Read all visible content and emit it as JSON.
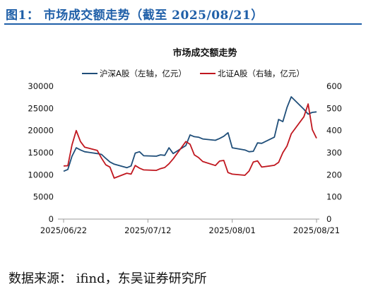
{
  "figure": {
    "title": "图1：  市场成交额走势（截至 2025/08/21）",
    "source": "数据来源：  ifind，东吴证券研究所"
  },
  "chart_data": {
    "type": "line",
    "title": "市场成交额走势",
    "legend_position": "top",
    "grid": false,
    "x_ticks": [
      "2025/06/22",
      "2025/07/12",
      "2025/08/01",
      "2025/08/21"
    ],
    "x_range": [
      "2025-06-22",
      "2025-08-21"
    ],
    "y_left": {
      "ticks": [
        "0",
        "5000",
        "10000",
        "15000",
        "20000",
        "25000",
        "30000"
      ],
      "range": [
        0,
        30000
      ]
    },
    "y_right": {
      "ticks": [
        "0",
        "100",
        "200",
        "300",
        "400",
        "500",
        "600"
      ],
      "range": [
        0,
        600
      ]
    },
    "series": [
      {
        "name": "沪深A股（左轴，亿元）",
        "axis": "left",
        "color": "#1f4e79",
        "x": [
          "2025-06-22",
          "2025-06-23",
          "2025-06-24",
          "2025-06-25",
          "2025-06-26",
          "2025-06-27",
          "2025-06-30",
          "2025-07-01",
          "2025-07-02",
          "2025-07-03",
          "2025-07-04",
          "2025-07-07",
          "2025-07-08",
          "2025-07-09",
          "2025-07-10",
          "2025-07-11",
          "2025-07-14",
          "2025-07-15",
          "2025-07-16",
          "2025-07-17",
          "2025-07-18",
          "2025-07-21",
          "2025-07-22",
          "2025-07-23",
          "2025-07-24",
          "2025-07-25",
          "2025-07-28",
          "2025-07-29",
          "2025-07-30",
          "2025-07-31",
          "2025-08-01",
          "2025-08-04",
          "2025-08-05",
          "2025-08-06",
          "2025-08-07",
          "2025-08-08",
          "2025-08-11",
          "2025-08-12",
          "2025-08-13",
          "2025-08-14",
          "2025-08-15",
          "2025-08-18",
          "2025-08-19",
          "2025-08-20",
          "2025-08-21"
        ],
        "values": [
          10800,
          11200,
          14200,
          16100,
          15600,
          15200,
          14800,
          14600,
          13700,
          12900,
          12400,
          11600,
          12000,
          14900,
          15200,
          14300,
          14200,
          14500,
          14400,
          16100,
          14800,
          16600,
          19000,
          18600,
          18500,
          18100,
          17800,
          18200,
          18700,
          19500,
          16100,
          15600,
          15200,
          15300,
          17200,
          17100,
          18500,
          22500,
          22000,
          25200,
          27600,
          24800,
          23700,
          24100,
          24200
        ]
      },
      {
        "name": "北证A股（右轴，亿元）",
        "axis": "right",
        "color": "#c0171f",
        "x": [
          "2025-06-22",
          "2025-06-23",
          "2025-06-24",
          "2025-06-25",
          "2025-06-26",
          "2025-06-27",
          "2025-06-30",
          "2025-07-01",
          "2025-07-02",
          "2025-07-03",
          "2025-07-04",
          "2025-07-07",
          "2025-07-08",
          "2025-07-09",
          "2025-07-10",
          "2025-07-11",
          "2025-07-14",
          "2025-07-15",
          "2025-07-16",
          "2025-07-17",
          "2025-07-18",
          "2025-07-21",
          "2025-07-22",
          "2025-07-23",
          "2025-07-24",
          "2025-07-25",
          "2025-07-28",
          "2025-07-29",
          "2025-07-30",
          "2025-07-31",
          "2025-08-01",
          "2025-08-04",
          "2025-08-05",
          "2025-08-06",
          "2025-08-07",
          "2025-08-08",
          "2025-08-11",
          "2025-08-12",
          "2025-08-13",
          "2025-08-14",
          "2025-08-15",
          "2025-08-18",
          "2025-08-19",
          "2025-08-20",
          "2025-08-21"
        ],
        "values": [
          240,
          241,
          335,
          400,
          350,
          325,
          310,
          275,
          245,
          235,
          185,
          207,
          203,
          242,
          230,
          222,
          220,
          228,
          233,
          250,
          272,
          350,
          338,
          290,
          278,
          260,
          242,
          262,
          265,
          210,
          203,
          198,
          217,
          258,
          263,
          235,
          243,
          256,
          300,
          330,
          385,
          462,
          520,
          404,
          365
        ]
      }
    ]
  }
}
